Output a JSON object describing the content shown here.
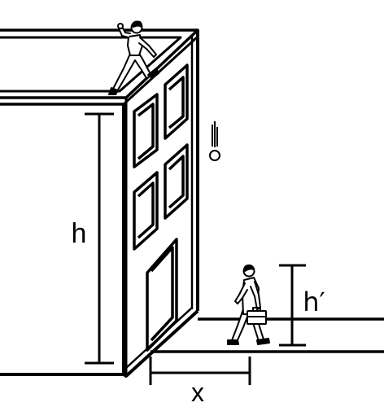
{
  "labels": {
    "building_height": "h",
    "person_height": "h′",
    "horizontal_distance": "x"
  },
  "colors": {
    "stroke": "#000000",
    "background": "#ffffff"
  },
  "figures": {
    "thrower": "person-on-roof-icon",
    "walker": "businessman-with-briefcase-icon",
    "falling_object": "falling-ball-icon"
  }
}
